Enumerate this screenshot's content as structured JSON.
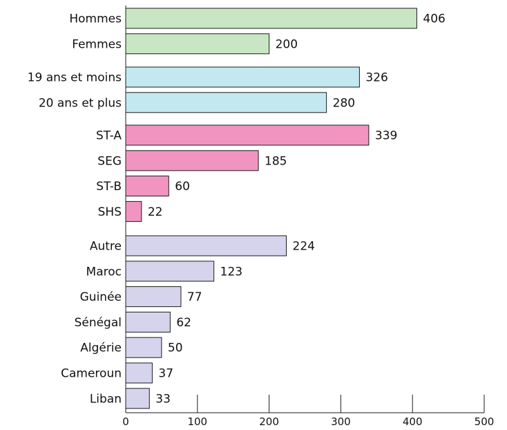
{
  "chart_data": {
    "type": "bar",
    "orientation": "horizontal",
    "title": "",
    "xlabel": "",
    "ylabel": "",
    "xlim": [
      0,
      500
    ],
    "x_ticks": [
      0,
      100,
      200,
      300,
      400,
      500
    ],
    "grid": false,
    "groups": [
      {
        "color": "#c8e6c3",
        "categories": [
          "Hommes",
          "Femmes"
        ],
        "values": [
          406,
          200
        ]
      },
      {
        "color": "#c3e8f0",
        "categories": [
          "19 ans et moins",
          "20 ans et plus"
        ],
        "values": [
          326,
          280
        ]
      },
      {
        "color": "#f195c0",
        "categories": [
          "ST-A",
          "SEG",
          "ST-B",
          "SHS"
        ],
        "values": [
          339,
          185,
          60,
          22
        ]
      },
      {
        "color": "#d6d4ec",
        "categories": [
          "Autre",
          "Maroc",
          "Guinée",
          "Sénégal",
          "Algérie",
          "Cameroun",
          "Liban"
        ],
        "values": [
          224,
          123,
          77,
          62,
          50,
          37,
          33
        ]
      }
    ]
  }
}
